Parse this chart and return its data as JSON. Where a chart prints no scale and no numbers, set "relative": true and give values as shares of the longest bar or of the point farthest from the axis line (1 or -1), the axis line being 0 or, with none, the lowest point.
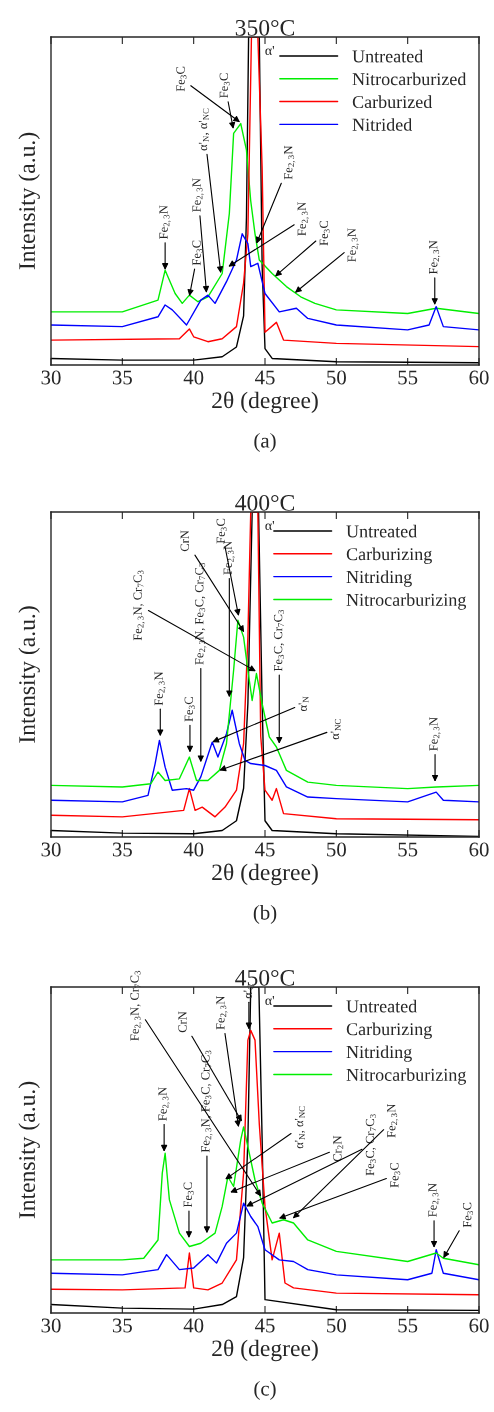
{
  "chart_data": [
    {
      "type": "line",
      "title": "350°C",
      "xlabel": "2θ (degree)",
      "ylabel": "Intensity (a.u.)",
      "relative": true,
      "xlim": [
        30,
        60
      ],
      "xticks": [
        30,
        35,
        40,
        45,
        50,
        55,
        60
      ],
      "grid": false,
      "legend": "top right",
      "series": [
        {
          "name": "Untreated",
          "color": "#000000",
          "x": [
            30,
            35,
            40,
            42,
            43,
            43.5,
            43.7,
            43.85,
            44.6,
            44.8,
            45,
            45.5,
            50,
            60
          ],
          "values": [
            0.02,
            0.015,
            0.015,
            0.025,
            0.055,
            0.15,
            0.45,
            1.0,
            1.0,
            0.3,
            0.05,
            0.02,
            0.01,
            0.007
          ]
        },
        {
          "name": "Nitrocarburized",
          "color": "#00ee00",
          "x": [
            30,
            35,
            37.5,
            38,
            38.7,
            39.2,
            39.7,
            40.3,
            41,
            42,
            42.5,
            42.8,
            43.3,
            43.7,
            44,
            44.3,
            44.6,
            45.5,
            46.5,
            47.5,
            48.5,
            50,
            55,
            57,
            60
          ],
          "values": [
            0.162,
            0.162,
            0.198,
            0.289,
            0.218,
            0.188,
            0.213,
            0.193,
            0.208,
            0.279,
            0.462,
            0.706,
            0.736,
            0.655,
            0.5,
            0.4,
            0.32,
            0.279,
            0.239,
            0.208,
            0.188,
            0.168,
            0.157,
            0.173,
            0.157
          ]
        },
        {
          "name": "Carburized",
          "color": "#ff0000",
          "x": [
            30,
            39,
            39.7,
            40,
            41,
            42,
            43,
            43.5,
            43.8,
            44.05,
            44.5,
            44.8,
            45,
            45.8,
            46.3,
            50,
            60
          ],
          "values": [
            0.076,
            0.08,
            0.11,
            0.086,
            0.071,
            0.08,
            0.117,
            0.25,
            0.4,
            1.0,
            1.0,
            0.6,
            0.1,
            0.13,
            0.076,
            0.066,
            0.056
          ]
        },
        {
          "name": "Nitrided",
          "color": "#0000ff",
          "x": [
            30,
            35,
            37.5,
            38,
            38.5,
            39.5,
            40.5,
            41,
            41.5,
            42.3,
            43,
            43.4,
            43.8,
            44,
            44.5,
            45,
            46,
            47.2,
            48,
            50,
            55,
            56.5,
            57,
            57.5,
            60
          ],
          "values": [
            0.122,
            0.117,
            0.147,
            0.183,
            0.168,
            0.122,
            0.198,
            0.213,
            0.188,
            0.254,
            0.32,
            0.4,
            0.37,
            0.3,
            0.31,
            0.218,
            0.162,
            0.173,
            0.142,
            0.122,
            0.107,
            0.122,
            0.178,
            0.117,
            0.107
          ]
        }
      ],
      "annotations": [
        {
          "text": "Fe$_{2,3}$N",
          "x": 38.0,
          "y": 0.29
        },
        {
          "text": "Fe$_{3}$C",
          "x": 39.7,
          "y": 0.21
        },
        {
          "text": "Fe$_{2,3}$N",
          "x": 40.9,
          "y": 0.22
        },
        {
          "text": "α'$_{N}$, α'$_{NC}$",
          "x": 41.9,
          "y": 0.28
        },
        {
          "text": "Fe$_{2,3}$N",
          "x": 42.43,
          "y": 0.3
        },
        {
          "text": "Fe$_{3}$C",
          "x": 42.78,
          "y": 0.72
        },
        {
          "text": "Fe$_{3}$C",
          "x": 43.25,
          "y": 0.74
        },
        {
          "text": "Fe$_{2,3}$N",
          "x": 44.4,
          "y": 0.37
        },
        {
          "text": "α'",
          "x": 44.6,
          "y": 1.0
        },
        {
          "text": "Fe$_{3}$C",
          "x": 45.7,
          "y": 0.27
        },
        {
          "text": "Fe$_{2,3}$N",
          "x": 47.1,
          "y": 0.22
        },
        {
          "text": "Fe$_{2,3}$N",
          "x": 56.9,
          "y": 0.183
        },
        "(a)"
      ]
    },
    {
      "type": "line",
      "title": "400°C",
      "xlabel": "2θ (degree)",
      "ylabel": "Intensity (a.u.)",
      "relative": true,
      "xlim": [
        30,
        60
      ],
      "xticks": [
        30,
        35,
        40,
        45,
        50,
        55,
        60
      ],
      "grid": false,
      "legend": "top right",
      "series": [
        {
          "name": "Untreated",
          "color": "#000000",
          "x": [
            30,
            35,
            40,
            42,
            43,
            43.5,
            43.8,
            44.1,
            44.55,
            44.8,
            45,
            45.5,
            50,
            60
          ],
          "values": [
            0.02,
            0.012,
            0.01,
            0.02,
            0.05,
            0.15,
            0.41,
            1.0,
            1.0,
            0.41,
            0.05,
            0.02,
            0.01,
            0.002
          ]
        },
        {
          "name": "Carburizing",
          "color": "#ff0000",
          "x": [
            30,
            35,
            39.3,
            39.7,
            40.1,
            40.6,
            41.5,
            42.2,
            43,
            43.5,
            43.8,
            44.0,
            44.5,
            44.7,
            45,
            45.5,
            45.8,
            46.3,
            50,
            60
          ],
          "values": [
            0.067,
            0.062,
            0.082,
            0.149,
            0.082,
            0.092,
            0.062,
            0.092,
            0.144,
            0.287,
            0.615,
            1.0,
            1.0,
            0.31,
            0.144,
            0.113,
            0.149,
            0.072,
            0.056,
            0.053
          ]
        },
        {
          "name": "Nitriding",
          "color": "#0000ff",
          "x": [
            30,
            35,
            36.8,
            37.3,
            37.6,
            38,
            38.5,
            39.5,
            40,
            40.5,
            41.3,
            41.7,
            42.3,
            42.7,
            43.2,
            43.6,
            44,
            45,
            45.8,
            46.5,
            48,
            50,
            55,
            57,
            57.5,
            60
          ],
          "values": [
            0.113,
            0.108,
            0.128,
            0.226,
            0.297,
            0.215,
            0.144,
            0.149,
            0.144,
            0.185,
            0.292,
            0.246,
            0.318,
            0.39,
            0.287,
            0.236,
            0.226,
            0.22,
            0.205,
            0.154,
            0.123,
            0.118,
            0.108,
            0.138,
            0.113,
            0.108
          ]
        },
        {
          "name": "Nitrocarburizing",
          "color": "#00ee00",
          "x": [
            30,
            35,
            37,
            37.5,
            38,
            39,
            39.7,
            40.2,
            41,
            41.8,
            42.3,
            42.8,
            43.1,
            43.5,
            43.8,
            44.1,
            44.4,
            44.8,
            45.3,
            45.8,
            46.5,
            48,
            50,
            55,
            57,
            60
          ],
          "values": [
            0.159,
            0.154,
            0.164,
            0.2,
            0.174,
            0.179,
            0.246,
            0.174,
            0.174,
            0.205,
            0.287,
            0.513,
            0.667,
            0.615,
            0.513,
            0.42,
            0.503,
            0.41,
            0.308,
            0.277,
            0.205,
            0.169,
            0.159,
            0.149,
            0.154,
            0.159
          ]
        }
      ],
      "annotations": [
        {
          "text": "Fe$_{2,3}$N",
          "x": 37.66,
          "y": 0.31
        },
        {
          "text": "Fe$_{3}$C",
          "x": 39.74,
          "y": 0.26
        },
        {
          "text": "Fe$_{2,3}$N, Fe$_{3}$C, Cr$_{7}$C$_{3}$",
          "x": 40.5,
          "y": 0.23
        },
        {
          "text": "α'$_{N}$",
          "x": 41.3,
          "y": 0.292
        },
        {
          "text": "α'$_{NC}$",
          "x": 41.8,
          "y": 0.205
        },
        {
          "text": "Fe$_{2,3}$N",
          "x": 42.5,
          "y": 0.43
        },
        {
          "text": "Fe$_{3}$C",
          "x": 43.15,
          "y": 0.68
        },
        {
          "text": "CrN",
          "x": 43.54,
          "y": 0.63
        },
        {
          "text": "Fe$_{2,3}$N, Cr$_{7}$C$_{3}$",
          "x": 44.36,
          "y": 0.51
        },
        {
          "text": "α'",
          "x": 44.6,
          "y": 1.0
        },
        {
          "text": "Fe$_{3}$C, Cr$_{7}$C$_{3}$",
          "x": 46.0,
          "y": 0.287
        },
        {
          "text": "Fe$_{2,3}$N",
          "x": 56.92,
          "y": 0.17
        },
        "(b)"
      ]
    },
    {
      "type": "line",
      "title": "450°C",
      "xlabel": "2θ (degree)",
      "ylabel": "Intensity (a.u.)",
      "relative": true,
      "xlim": [
        30,
        60
      ],
      "xticks": [
        30,
        35,
        40,
        45,
        50,
        55,
        60
      ],
      "grid": false,
      "legend": "top right",
      "series": [
        {
          "name": "Untreated",
          "color": "#000000",
          "x": [
            30,
            35,
            40,
            42,
            43,
            43.5,
            43.8,
            44.0,
            44.57,
            44.8,
            45,
            50,
            60
          ],
          "values": [
            0.026,
            0.015,
            0.012,
            0.026,
            0.05,
            0.17,
            0.53,
            1.0,
            1.0,
            0.53,
            0.041,
            0.01,
            0.008
          ]
        },
        {
          "name": "Carburizing",
          "color": "#ff0000",
          "x": [
            30,
            35,
            39.4,
            39.7,
            40,
            41,
            42,
            43,
            43.5,
            43.8,
            44.0,
            44.3,
            44.6,
            45,
            45.5,
            46,
            46.4,
            47,
            50,
            60
          ],
          "values": [
            0.073,
            0.071,
            0.077,
            0.184,
            0.077,
            0.071,
            0.092,
            0.163,
            0.429,
            0.837,
            0.867,
            0.837,
            0.58,
            0.327,
            0.163,
            0.245,
            0.092,
            0.077,
            0.061,
            0.056
          ]
        },
        {
          "name": "Nitriding",
          "color": "#0000ff",
          "x": [
            30,
            35,
            37.5,
            38.1,
            39,
            40,
            41,
            41.6,
            42.3,
            43,
            43.5,
            44,
            44.5,
            45,
            46,
            47,
            48,
            50,
            55,
            56.7,
            57,
            57.5,
            60
          ],
          "values": [
            0.122,
            0.117,
            0.133,
            0.179,
            0.133,
            0.138,
            0.179,
            0.153,
            0.214,
            0.245,
            0.337,
            0.296,
            0.265,
            0.194,
            0.163,
            0.158,
            0.133,
            0.117,
            0.102,
            0.122,
            0.194,
            0.122,
            0.102
          ]
        },
        {
          "name": "Nitrocarburizing",
          "color": "#00ee00",
          "x": [
            30,
            35,
            36.5,
            37.5,
            37.8,
            38,
            38.3,
            39,
            39.7,
            40.5,
            41.5,
            42,
            42.4,
            42.8,
            43.3,
            43.5,
            43.8,
            44.3,
            44.8,
            45.5,
            46.3,
            47,
            48,
            50,
            55,
            57,
            57.5,
            60
          ],
          "values": [
            0.163,
            0.163,
            0.168,
            0.224,
            0.429,
            0.49,
            0.347,
            0.245,
            0.204,
            0.214,
            0.245,
            0.327,
            0.418,
            0.388,
            0.531,
            0.571,
            0.51,
            0.408,
            0.337,
            0.276,
            0.286,
            0.276,
            0.224,
            0.189,
            0.158,
            0.184,
            0.168,
            0.148
          ]
        }
      ],
      "annotations": [
        {
          "text": "Fe$_{2,3}$N",
          "x": 37.93,
          "y": 0.495
        },
        {
          "text": "Fe$_{3}$C",
          "x": 39.67,
          "y": 0.23
        },
        {
          "text": "Fe$_{2,3}$N, Fe$_{3}$C, Cr$_{7}$C$_{3}$",
          "x": 40.93,
          "y": 0.245
        },
        {
          "text": "α'$_{N}$, α'$_{NC}$",
          "x": 42.21,
          "y": 0.41
        },
        {
          "text": "Cr$_{2}$N",
          "x": 42.56,
          "y": 0.37
        },
        {
          "text": "Fe$_{2,3}$N",
          "x": 43.15,
          "y": 0.57
        },
        {
          "text": "CrN",
          "x": 43.38,
          "y": 0.587
        },
        {
          "text": "Fe$_{3}$C, Cr$_{7}$C$_{3}$",
          "x": 43.68,
          "y": 0.327
        },
        {
          "text": "α'$_{C}$",
          "x": 43.87,
          "y": 0.87
        },
        {
          "text": "α'",
          "x": 44.6,
          "y": 1.0
        },
        {
          "text": "Fe$_{2,3}$N, Cr$_{7}$C$_{3}$",
          "x": 44.73,
          "y": 0.357
        },
        {
          "text": "Fe$_{3}$C",
          "x": 45.97,
          "y": 0.29
        },
        {
          "text": "Fe$_{2,3}$N",
          "x": 46.95,
          "y": 0.29
        },
        {
          "text": "Fe$_{2,3}$N",
          "x": 56.85,
          "y": 0.2
        },
        {
          "text": "Fe$_{3}$C",
          "x": 57.5,
          "y": 0.168
        },
        "(c)"
      ]
    }
  ]
}
